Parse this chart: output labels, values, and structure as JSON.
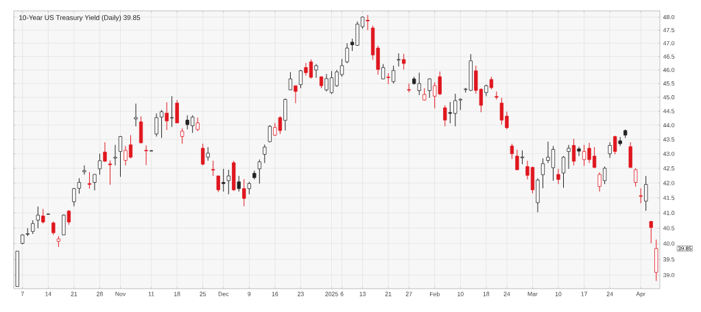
{
  "chart_data": {
    "type": "candlestick",
    "title": "10-Year US Treasury Yield (Daily) 39.85",
    "categories": [
      null,
      "7",
      null,
      null,
      null,
      null,
      "14",
      null,
      null,
      null,
      null,
      "21",
      null,
      null,
      null,
      null,
      "28",
      null,
      null,
      null,
      "Nov",
      null,
      null,
      null,
      null,
      null,
      "11",
      null,
      null,
      null,
      null,
      "18",
      null,
      null,
      null,
      null,
      "25",
      null,
      null,
      null,
      "Dec",
      null,
      null,
      null,
      null,
      "9",
      null,
      null,
      null,
      null,
      "16",
      null,
      null,
      null,
      null,
      "23",
      null,
      null,
      null,
      null,
      null,
      "2025",
      null,
      "6",
      null,
      null,
      null,
      "13",
      null,
      null,
      null,
      null,
      "21",
      null,
      null,
      null,
      "27",
      null,
      null,
      null,
      null,
      "Feb",
      null,
      null,
      null,
      null,
      "10",
      null,
      null,
      null,
      null,
      "18",
      null,
      null,
      null,
      "24",
      null,
      null,
      null,
      null,
      "Mar",
      null,
      null,
      null,
      null,
      "10",
      null,
      null,
      null,
      null,
      "17",
      null,
      null,
      null,
      null,
      "24",
      null,
      null,
      null,
      null,
      null,
      "Apr",
      null,
      null,
      null
    ],
    "ohlc": [
      [
        38.65,
        39.76,
        38.65,
        39.76
      ],
      [
        40.01,
        40.3,
        39.98,
        40.28
      ],
      [
        40.3,
        40.5,
        40.24,
        40.32
      ],
      [
        40.39,
        40.76,
        40.31,
        40.65
      ],
      [
        40.76,
        41.21,
        40.5,
        40.93
      ],
      [
        40.9,
        41.13,
        40.65,
        40.7
      ],
      [
        40.96,
        40.96,
        40.96,
        40.96
      ],
      [
        40.67,
        40.72,
        40.28,
        40.35
      ],
      [
        40.07,
        40.24,
        39.9,
        40.15
      ],
      [
        40.28,
        40.95,
        40.28,
        40.93
      ],
      [
        41.06,
        41.1,
        40.61,
        40.7
      ],
      [
        41.37,
        41.83,
        41.22,
        41.81
      ],
      [
        41.82,
        42.16,
        41.64,
        42.02
      ],
      [
        42.38,
        42.6,
        42.28,
        42.42
      ],
      [
        41.98,
        42.37,
        41.81,
        41.95
      ],
      [
        42.02,
        42.3,
        41.75,
        42.29
      ],
      [
        42.48,
        43.0,
        42.28,
        42.76
      ],
      [
        43.06,
        43.4,
        42.72,
        42.74
      ],
      [
        42.65,
        42.77,
        41.94,
        42.62
      ],
      [
        42.85,
        43.31,
        42.6,
        42.88
      ],
      [
        43.08,
        43.62,
        42.21,
        43.6
      ],
      [
        42.77,
        43.27,
        42.6,
        43.12
      ],
      [
        43.31,
        43.65,
        42.84,
        42.88
      ],
      [
        44.22,
        44.77,
        43.96,
        44.27
      ],
      [
        44.12,
        44.31,
        43.36,
        43.38
      ],
      [
        43.12,
        43.29,
        42.61,
        43.1
      ],
      [
        43.1,
        43.1,
        43.1,
        43.1
      ],
      [
        43.69,
        44.42,
        43.6,
        44.27
      ],
      [
        44.29,
        44.54,
        43.55,
        44.48
      ],
      [
        44.43,
        44.82,
        43.83,
        44.15
      ],
      [
        44.26,
        45.04,
        43.94,
        44.27
      ],
      [
        44.79,
        44.9,
        44.07,
        44.08
      ],
      [
        43.6,
        43.89,
        43.35,
        43.79
      ],
      [
        44.18,
        44.35,
        43.85,
        44.02
      ],
      [
        43.98,
        44.35,
        43.73,
        44.29
      ],
      [
        43.85,
        44.27,
        43.79,
        44.08
      ],
      [
        43.19,
        43.35,
        42.6,
        42.64
      ],
      [
        42.88,
        43.23,
        42.76,
        43.02
      ],
      [
        42.46,
        42.76,
        42.24,
        42.44
      ],
      [
        42.24,
        42.25,
        41.69,
        41.77
      ],
      [
        42.02,
        42.48,
        41.71,
        41.98
      ],
      [
        42.08,
        42.45,
        41.62,
        42.24
      ],
      [
        42.69,
        42.76,
        41.73,
        41.77
      ],
      [
        42.04,
        42.24,
        41.71,
        41.81
      ],
      [
        41.81,
        42.13,
        41.22,
        41.48
      ],
      [
        41.81,
        42.04,
        41.62,
        41.98
      ],
      [
        42.33,
        42.42,
        42.12,
        42.18
      ],
      [
        42.48,
        42.8,
        41.98,
        42.72
      ],
      [
        42.98,
        43.32,
        42.68,
        43.23
      ],
      [
        43.42,
        44.0,
        43.4,
        43.96
      ],
      [
        43.65,
        44.08,
        43.62,
        43.92
      ],
      [
        44.27,
        44.32,
        43.69,
        43.81
      ],
      [
        44.17,
        44.96,
        43.81,
        44.92
      ],
      [
        45.27,
        45.92,
        45.26,
        45.67
      ],
      [
        45.42,
        45.43,
        44.79,
        45.21
      ],
      [
        45.46,
        46.0,
        45.33,
        45.97
      ],
      [
        46.09,
        46.26,
        45.79,
        45.9
      ],
      [
        46.3,
        46.39,
        45.68,
        45.73
      ],
      [
        46.0,
        46.22,
        45.71,
        46.16
      ],
      [
        45.75,
        45.76,
        45.33,
        45.42
      ],
      [
        45.27,
        45.85,
        45.21,
        45.68
      ],
      [
        45.17,
        45.96,
        45.12,
        45.71
      ],
      [
        45.42,
        46.0,
        45.38,
        45.93
      ],
      [
        45.83,
        46.41,
        45.75,
        46.16
      ],
      [
        46.3,
        47.0,
        46.25,
        46.82
      ],
      [
        47.04,
        47.17,
        46.71,
        46.94
      ],
      [
        46.92,
        47.83,
        46.9,
        47.73
      ],
      [
        47.63,
        48.02,
        47.56,
        48.0
      ],
      [
        47.88,
        48.08,
        47.5,
        47.85
      ],
      [
        47.58,
        47.67,
        46.38,
        46.56
      ],
      [
        46.82,
        46.91,
        45.83,
        46.02
      ],
      [
        45.67,
        46.22,
        45.66,
        46.09
      ],
      [
        45.74,
        45.88,
        45.48,
        45.72
      ],
      [
        45.57,
        46.16,
        45.5,
        45.98
      ],
      [
        46.37,
        46.62,
        46.13,
        46.39
      ],
      [
        46.39,
        46.6,
        46.02,
        46.24
      ],
      [
        45.28,
        45.5,
        45.18,
        45.26
      ],
      [
        45.67,
        45.75,
        45.46,
        45.5
      ],
      [
        45.24,
        45.9,
        45.08,
        45.5
      ],
      [
        44.9,
        45.33,
        44.88,
        45.1
      ],
      [
        45.24,
        45.69,
        44.98,
        45.67
      ],
      [
        45.04,
        45.54,
        44.6,
        45.42
      ],
      [
        45.75,
        45.94,
        45.08,
        45.12
      ],
      [
        44.62,
        44.71,
        43.96,
        44.18
      ],
      [
        44.45,
        44.83,
        44.07,
        44.42
      ],
      [
        44.42,
        45.13,
        43.96,
        44.88
      ],
      [
        44.9,
        44.96,
        44.54,
        44.93
      ],
      [
        45.28,
        45.34,
        45.17,
        45.3
      ],
      [
        45.25,
        46.59,
        45.23,
        46.34
      ],
      [
        45.97,
        46.16,
        45.13,
        45.25
      ],
      [
        45.29,
        45.33,
        44.46,
        44.71
      ],
      [
        45.17,
        45.46,
        45.04,
        45.42
      ],
      [
        45.65,
        45.75,
        45.29,
        45.35
      ],
      [
        45.03,
        45.21,
        44.92,
        45.0
      ],
      [
        44.79,
        44.98,
        44.02,
        44.18
      ],
      [
        44.32,
        44.48,
        43.86,
        43.91
      ],
      [
        43.27,
        43.35,
        42.82,
        43.0
      ],
      [
        42.92,
        43.14,
        42.44,
        42.45
      ],
      [
        42.86,
        43.12,
        42.64,
        42.89
      ],
      [
        42.56,
        42.76,
        42.12,
        42.26
      ],
      [
        42.53,
        42.56,
        41.65,
        41.77
      ],
      [
        41.34,
        42.16,
        41.02,
        42.1
      ],
      [
        42.28,
        42.84,
        41.82,
        42.66
      ],
      [
        42.77,
        43.42,
        42.68,
        42.88
      ],
      [
        42.52,
        43.27,
        42.08,
        43.15
      ],
      [
        42.29,
        42.48,
        41.96,
        42.12
      ],
      [
        42.34,
        42.92,
        41.84,
        42.88
      ],
      [
        43.08,
        43.31,
        42.48,
        43.19
      ],
      [
        43.29,
        43.52,
        42.6,
        42.74
      ],
      [
        43.17,
        43.25,
        42.92,
        43.09
      ],
      [
        42.8,
        43.31,
        42.58,
        43.08
      ],
      [
        43.19,
        43.38,
        42.68,
        42.8
      ],
      [
        42.92,
        43.23,
        42.5,
        42.53
      ],
      [
        41.88,
        42.36,
        41.71,
        42.29
      ],
      [
        42.08,
        42.56,
        41.96,
        42.5
      ],
      [
        43.0,
        43.4,
        42.86,
        43.29
      ],
      [
        43.6,
        43.63,
        42.98,
        43.08
      ],
      [
        43.45,
        43.58,
        43.27,
        43.35
      ],
      [
        43.81,
        43.85,
        43.55,
        43.65
      ],
      [
        43.25,
        43.4,
        42.5,
        42.53
      ],
      [
        42.02,
        42.5,
        41.88,
        42.45
      ],
      [
        41.57,
        41.82,
        41.32,
        41.55
      ],
      [
        41.39,
        42.24,
        41.07,
        41.95
      ],
      [
        40.72,
        40.73,
        40.01,
        40.52
      ],
      [
        39.09,
        40.13,
        38.82,
        39.85
      ]
    ],
    "colors": [
      "#222222",
      "#222222",
      "#222222",
      "#222222",
      "#222222",
      "#e0161e",
      "#222222",
      "#e0161e",
      "#e0161e",
      "#222222",
      "#e0161e",
      "#222222",
      "#222222",
      "#222222",
      "#e0161e",
      "#222222",
      "#222222",
      "#e0161e",
      "#e0161e",
      "#222222",
      "#222222",
      "#e0161e",
      "#e0161e",
      "#222222",
      "#e0161e",
      "#e0161e",
      "#222222",
      "#222222",
      "#222222",
      "#e0161e",
      "#222222",
      "#e0161e",
      "#e0161e",
      "#222222",
      "#222222",
      "#e0161e",
      "#e0161e",
      "#222222",
      "#e0161e",
      "#e0161e",
      "#222222",
      "#222222",
      "#e0161e",
      "#222222",
      "#e0161e",
      "#222222",
      "#222222",
      "#222222",
      "#222222",
      "#222222",
      "#e0161e",
      "#e0161e",
      "#222222",
      "#222222",
      "#e0161e",
      "#222222",
      "#e0161e",
      "#e0161e",
      "#222222",
      "#e0161e",
      "#222222",
      "#222222",
      "#222222",
      "#222222",
      "#222222",
      "#222222",
      "#222222",
      "#222222",
      "#e0161e",
      "#e0161e",
      "#e0161e",
      "#222222",
      "#e0161e",
      "#222222",
      "#222222",
      "#e0161e",
      "#e0161e",
      "#222222",
      "#222222",
      "#e0161e",
      "#222222",
      "#e0161e",
      "#e0161e",
      "#e0161e",
      "#222222",
      "#222222",
      "#222222",
      "#222222",
      "#222222",
      "#e0161e",
      "#e0161e",
      "#222222",
      "#e0161e",
      "#e0161e",
      "#e0161e",
      "#e0161e",
      "#e0161e",
      "#e0161e",
      "#222222",
      "#e0161e",
      "#e0161e",
      "#222222",
      "#222222",
      "#222222",
      "#222222",
      "#e0161e",
      "#222222",
      "#222222",
      "#e0161e",
      "#222222",
      "#e0161e",
      "#e0161e",
      "#e0161e",
      "#e0161e",
      "#222222",
      "#222222",
      "#e0161e",
      "#222222",
      "#222222",
      "#e0161e",
      "#e0161e",
      "#e0161e",
      "#222222",
      "#e0161e",
      "#e0161e"
    ],
    "log": true,
    "ylim": [
      38.58,
      48.24
    ],
    "yticks": [
      {
        "value": 39,
        "label": "39.0"
      },
      39.5,
      {
        "value": 40,
        "label": "40.0"
      },
      40.5,
      {
        "value": 41,
        "label": "41.0"
      },
      41.5,
      {
        "value": 42,
        "label": "42.0"
      },
      42.5,
      {
        "value": 43,
        "label": "43.0"
      },
      43.5,
      {
        "value": 44,
        "label": "44.0"
      },
      44.5,
      {
        "value": 45,
        "label": "45.0"
      },
      45.5,
      {
        "value": 46,
        "label": "46.0"
      },
      46.5,
      {
        "value": 47,
        "label": "47.0"
      },
      47.5,
      {
        "value": 48,
        "label": "48.0"
      }
    ],
    "grid": true,
    "annotations": [
      "39.85"
    ]
  }
}
